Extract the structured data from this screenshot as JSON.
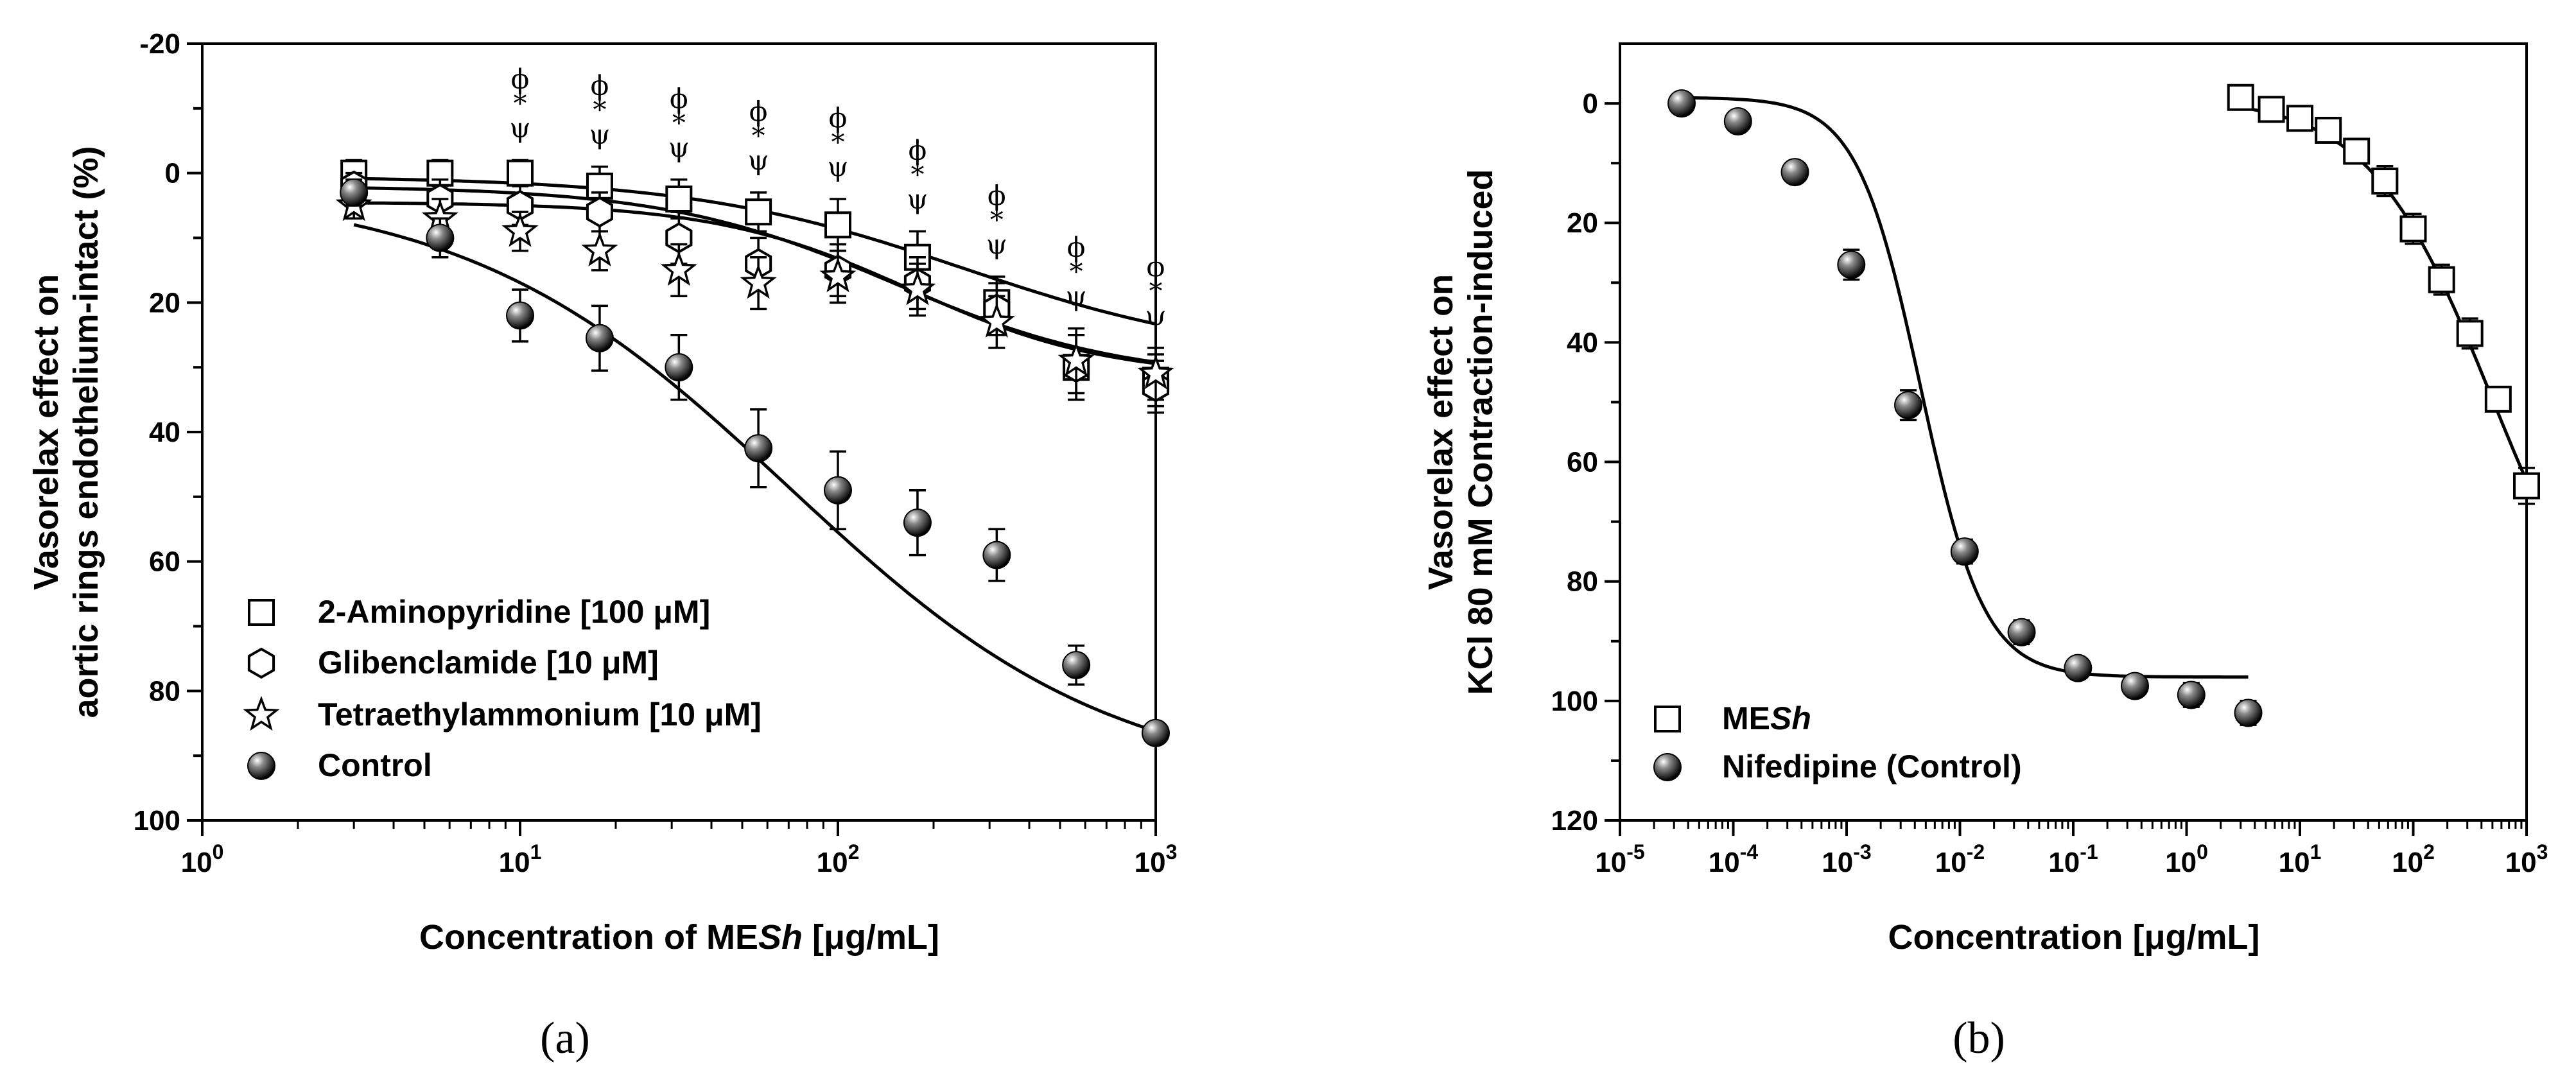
{
  "chart_data": [
    {
      "type": "scatter",
      "panel_label": "(a)",
      "xlabel_prefix": "Concentration of ME",
      "xlabel_italic": "Sh",
      "xlabel_suffix": " [μg/mL]",
      "ylabel_lines": [
        "Vasorelax effect on",
        "aortic rings endothelium-intact (%)"
      ],
      "x_scale": "log",
      "xlim": [
        1,
        1000
      ],
      "ylim": [
        -20,
        100
      ],
      "y_inverted": true,
      "yticks": [
        -20,
        0,
        20,
        40,
        60,
        80,
        100
      ],
      "ytick_labels": [
        "-20",
        "0",
        "20",
        "40",
        "60",
        "80",
        "100"
      ],
      "xtick_labels": [
        {
          "base": "10",
          "exp": "0"
        },
        {
          "base": "10",
          "exp": "1"
        },
        {
          "base": "10",
          "exp": "2"
        },
        {
          "base": "10",
          "exp": "3"
        }
      ],
      "series": [
        {
          "name": "2-Aminopyridine [100 μM]",
          "marker": "square",
          "x": [
            3,
            5.6,
            10,
            17.8,
            31.6,
            56.2,
            100,
            178,
            316,
            562,
            1000
          ],
          "y": [
            0,
            0,
            0,
            2,
            4,
            6,
            8,
            13,
            20,
            30,
            32
          ],
          "err": [
            2,
            2,
            2,
            3,
            3,
            3,
            4,
            4,
            4,
            5,
            4
          ],
          "fit": {
            "bottom": 0.5,
            "top": 29,
            "ec50": 250,
            "hill": 1.0
          }
        },
        {
          "name": "Glibenclamide [10 μM]",
          "marker": "hexagon",
          "x": [
            3,
            5.6,
            10,
            17.8,
            31.6,
            56.2,
            100,
            178,
            316,
            562,
            1000
          ],
          "y": [
            2,
            4,
            5,
            6,
            10,
            14,
            15,
            17,
            21,
            30,
            33
          ],
          "err": [
            2,
            3,
            3,
            3,
            4,
            4,
            4,
            4,
            4,
            5,
            4
          ],
          "fit": {
            "bottom": 2,
            "top": 32,
            "ec50": 150,
            "hill": 1.2
          }
        },
        {
          "name": "Tetraethylammonium [10 μM]",
          "marker": "star",
          "x": [
            3,
            5.6,
            10,
            17.8,
            31.6,
            56.2,
            100,
            178,
            316,
            562,
            1000
          ],
          "y": [
            5,
            7,
            9,
            12,
            15,
            17,
            16,
            18,
            23,
            29,
            31
          ],
          "err": [
            2,
            3,
            3,
            3,
            4,
            4,
            4,
            4,
            4,
            5,
            4
          ],
          "fit": {
            "bottom": 4.5,
            "top": 31.5,
            "ec50": 170,
            "hill": 1.4
          }
        },
        {
          "name": "Control",
          "marker": "ball",
          "x": [
            3,
            5.6,
            10,
            17.8,
            31.6,
            56.2,
            100,
            178,
            316,
            562,
            1000
          ],
          "y": [
            3,
            10,
            22,
            25.5,
            30,
            42.5,
            49,
            54,
            59,
            76,
            86.5
          ],
          "err": [
            2,
            3,
            4,
            5,
            5,
            6,
            6,
            5,
            4,
            3,
            1.5
          ],
          "fit": {
            "bottom": 2,
            "top": 95,
            "ec50": 70,
            "hill": 0.85
          }
        }
      ],
      "significance": [
        {
          "x": 10,
          "symbols": [
            "ϕ",
            "*",
            "ψ"
          ]
        },
        {
          "x": 17.8,
          "symbols": [
            "ϕ",
            "*",
            "ψ"
          ]
        },
        {
          "x": 31.6,
          "symbols": [
            "ϕ",
            "*",
            "ψ"
          ]
        },
        {
          "x": 56.2,
          "symbols": [
            "ϕ",
            "*",
            "ψ"
          ]
        },
        {
          "x": 100,
          "symbols": [
            "ϕ",
            "*",
            "ψ"
          ]
        },
        {
          "x": 178,
          "symbols": [
            "ϕ",
            "*",
            "ψ"
          ]
        },
        {
          "x": 316,
          "symbols": [
            "ϕ",
            "*",
            "ψ"
          ]
        },
        {
          "x": 562,
          "symbols": [
            "ϕ",
            "*",
            "ψ"
          ]
        },
        {
          "x": 1000,
          "symbols": [
            "ϕ",
            "*",
            "ψ"
          ]
        }
      ],
      "legend_position": "bottom-left"
    },
    {
      "type": "scatter",
      "panel_label": "(b)",
      "xlabel": "Concentration [μg/mL]",
      "ylabel_lines": [
        "Vasorelax effect on",
        "KCl 80 mM Contraction-induced"
      ],
      "x_scale": "log",
      "xlim": [
        1e-05,
        1000
      ],
      "ylim": [
        -10,
        120
      ],
      "y_inverted": true,
      "yticks": [
        0,
        20,
        40,
        60,
        80,
        100,
        120
      ],
      "ytick_labels": [
        "0",
        "20",
        "40",
        "60",
        "80",
        "100",
        "120"
      ],
      "xtick_labels": [
        {
          "base": "10",
          "exp": "-5"
        },
        {
          "base": "10",
          "exp": "-4"
        },
        {
          "base": "10",
          "exp": "-3"
        },
        {
          "base": "10",
          "exp": "-2"
        },
        {
          "base": "10",
          "exp": "-1"
        },
        {
          "base": "10",
          "exp": "0"
        },
        {
          "base": "10",
          "exp": "1"
        },
        {
          "base": "10",
          "exp": "2"
        },
        {
          "base": "10",
          "exp": "3"
        }
      ],
      "series": [
        {
          "name": "MESh",
          "legend_prefix": "ME",
          "legend_italic": "Sh",
          "marker": "square",
          "x": [
            3,
            5.6,
            10,
            17.8,
            31.6,
            56.2,
            100,
            178,
            316,
            562,
            1000
          ],
          "y": [
            -1,
            1,
            2.5,
            4.5,
            8,
            13,
            21,
            29.5,
            38.5,
            49.5,
            64
          ],
          "err": [
            1.5,
            1.5,
            1.5,
            2,
            2,
            2.5,
            2.5,
            2.5,
            2.5,
            2,
            3
          ],
          "fit": {
            "bottom": -1,
            "top": 100,
            "ec50": 500,
            "hill": 0.8
          }
        },
        {
          "name": "Nifedipine (Control)",
          "marker": "ball",
          "x": [
            3.5e-05,
            0.00011,
            0.00035,
            0.0011,
            0.0035,
            0.011,
            0.035,
            0.11,
            0.35,
            1.1,
            3.5
          ],
          "y": [
            0,
            3,
            11.5,
            27,
            50.5,
            75,
            88.5,
            94.5,
            97.5,
            99,
            102
          ],
          "err": [
            1,
            1,
            1.5,
            2.5,
            2.5,
            2,
            2,
            1.5,
            1.5,
            2,
            2
          ],
          "fit": {
            "bottom": -1,
            "top": 96,
            "ec50": 0.0045,
            "hill": 1.55
          }
        }
      ],
      "legend_position": "bottom-left"
    }
  ]
}
